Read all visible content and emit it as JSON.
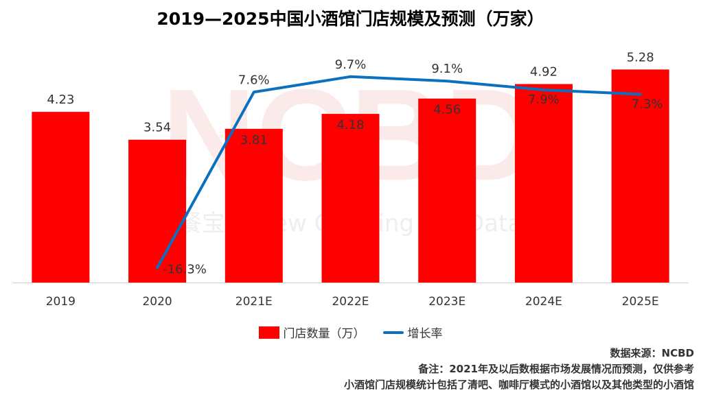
{
  "title": "2019—2025中国小酒馆门店规模及预测（万家）",
  "watermark": {
    "logo": "NCBD",
    "text": "餐宝典 New Catering Big Data"
  },
  "chart_data": {
    "type": "bar",
    "categories": [
      "2019",
      "2020",
      "2021E",
      "2022E",
      "2023E",
      "2024E",
      "2025E"
    ],
    "series": [
      {
        "name": "门店数量（万）",
        "type": "bar",
        "values": [
          4.23,
          3.54,
          3.81,
          4.18,
          4.56,
          4.92,
          5.28
        ],
        "color": "#ff0000"
      },
      {
        "name": "增长率",
        "type": "line",
        "values": [
          null,
          -16.3,
          7.6,
          9.7,
          9.1,
          7.9,
          7.3
        ],
        "labels": [
          "",
          "-16.3%",
          "7.6%",
          "9.7%",
          "9.1%",
          "7.9%",
          "7.3%"
        ],
        "color": "#0a70c0"
      }
    ],
    "bar_ylim": [
      0,
      6
    ],
    "line_ylim": [
      -20,
      15
    ],
    "grid": false,
    "legend_position": "bottom"
  },
  "notes": {
    "source": "数据来源：NCBD",
    "remark": "备注：2021年及以后数根据市场发展情况而预测，仅供参考",
    "scope": "小酒馆门店规模统计包括了清吧、咖啡厅模式的小酒馆以及其他类型的小酒馆"
  }
}
